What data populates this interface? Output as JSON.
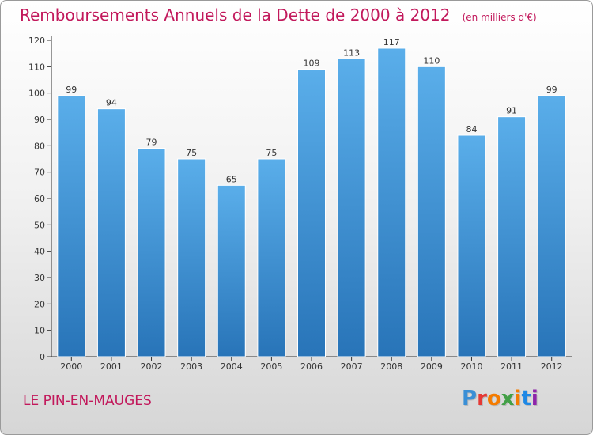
{
  "chart_data": {
    "type": "bar",
    "title": "Remboursements Annuels de la Dette de 2000 à 2012",
    "unit_note": "(en milliers d'€)",
    "categories": [
      "2000",
      "2001",
      "2002",
      "2003",
      "2004",
      "2005",
      "2006",
      "2007",
      "2008",
      "2009",
      "2010",
      "2011",
      "2012"
    ],
    "values": [
      99,
      94,
      79,
      75,
      65,
      75,
      109,
      113,
      117,
      110,
      84,
      91,
      99
    ],
    "ylim": [
      0,
      120
    ],
    "yticks": [
      0,
      10,
      20,
      30,
      40,
      50,
      60,
      70,
      80,
      90,
      100,
      110,
      120
    ],
    "grid": false,
    "bar_color": "#3a8fd6",
    "data_labels": true
  },
  "commune": "LE PIN-EN-MAUGES",
  "logo": {
    "text": "Proxiti",
    "colors": [
      "#3a8fd6",
      "#e53935",
      "#f57c00",
      "#43a047",
      "#f57c00",
      "#1e88e5",
      "#8e24aa"
    ]
  },
  "colors": {
    "title": "#c2185b",
    "axis": "#333333"
  }
}
